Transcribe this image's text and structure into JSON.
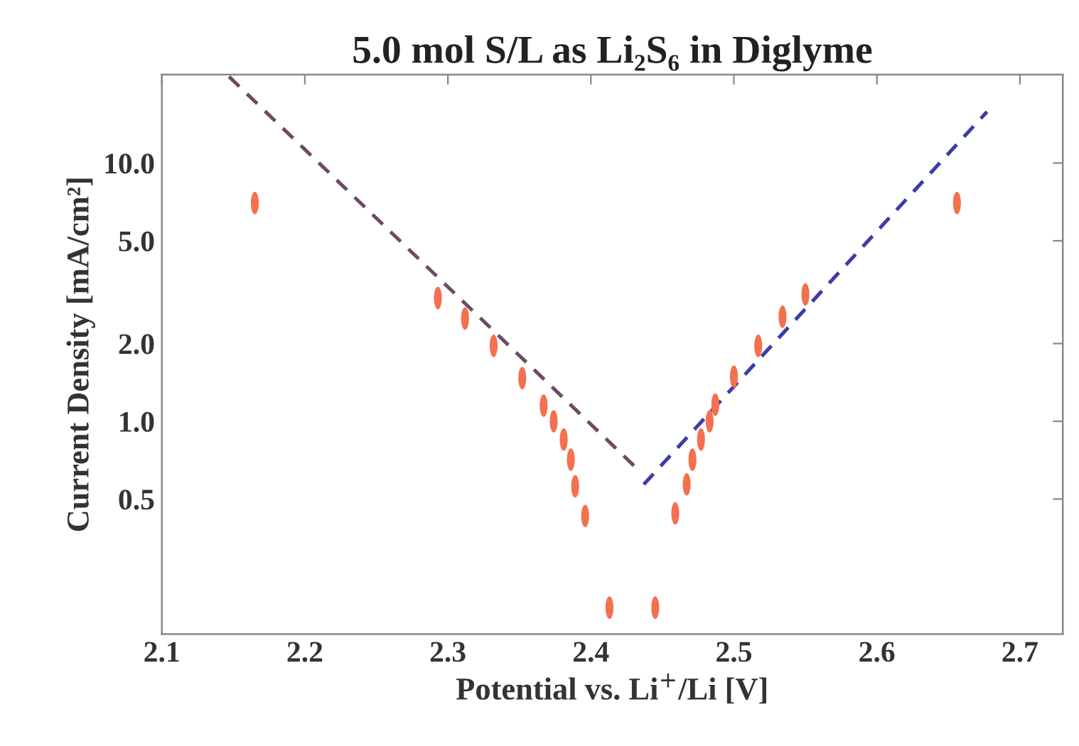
{
  "chart_data": {
    "type": "scatter",
    "title": "5.0 mol S/L as Li₂S₆ in Diglyme",
    "xlabel": "Potential vs. Li$^{+}$/Li [V]",
    "ylabel": "Current Density [mA/cm²]",
    "log": "y",
    "grid": false,
    "marker": "circle",
    "xlim": [
      2.1,
      2.73
    ],
    "xticks": [
      2.1,
      2.2,
      2.3,
      2.4,
      2.5,
      2.6,
      2.7
    ],
    "ylim": [
      0.15,
      22
    ],
    "yticks": [
      0.5,
      {
        "value": 1,
        "label": "1.0"
      },
      {
        "value": 2,
        "label": "2.0"
      },
      {
        "value": 5,
        "label": "5.0"
      },
      {
        "value": 10,
        "label": "10.0"
      }
    ],
    "series": [
      {
        "color": "#f4704f",
        "x": [
          2.165,
          2.293,
          2.312,
          2.332,
          2.352,
          2.367,
          2.374,
          2.381,
          2.386,
          2.389,
          2.396,
          2.413,
          2.445,
          2.459,
          2.467,
          2.471,
          2.477,
          2.483,
          2.487,
          2.5,
          2.517,
          2.534,
          2.55,
          2.656
        ],
        "values": [
          7.0,
          3.0,
          2.5,
          1.96,
          1.47,
          1.15,
          1.0,
          0.85,
          0.71,
          0.56,
          0.43,
          0.19,
          0.19,
          0.44,
          0.57,
          0.71,
          0.85,
          1.0,
          1.16,
          1.49,
          1.96,
          2.54,
          3.1,
          7.0
        ]
      },
      {
        "type": "line",
        "line_style": "dashed",
        "marker": "none",
        "color": "#6e4a66",
        "x": [
          2.147,
          2.433
        ],
        "values": [
          21.6,
          0.65
        ]
      },
      {
        "type": "line",
        "line_style": "dashed",
        "marker": "none",
        "color": "#3c3ca8",
        "x": [
          2.437,
          2.677
        ],
        "values": [
          0.57,
          15.8
        ]
      }
    ]
  }
}
